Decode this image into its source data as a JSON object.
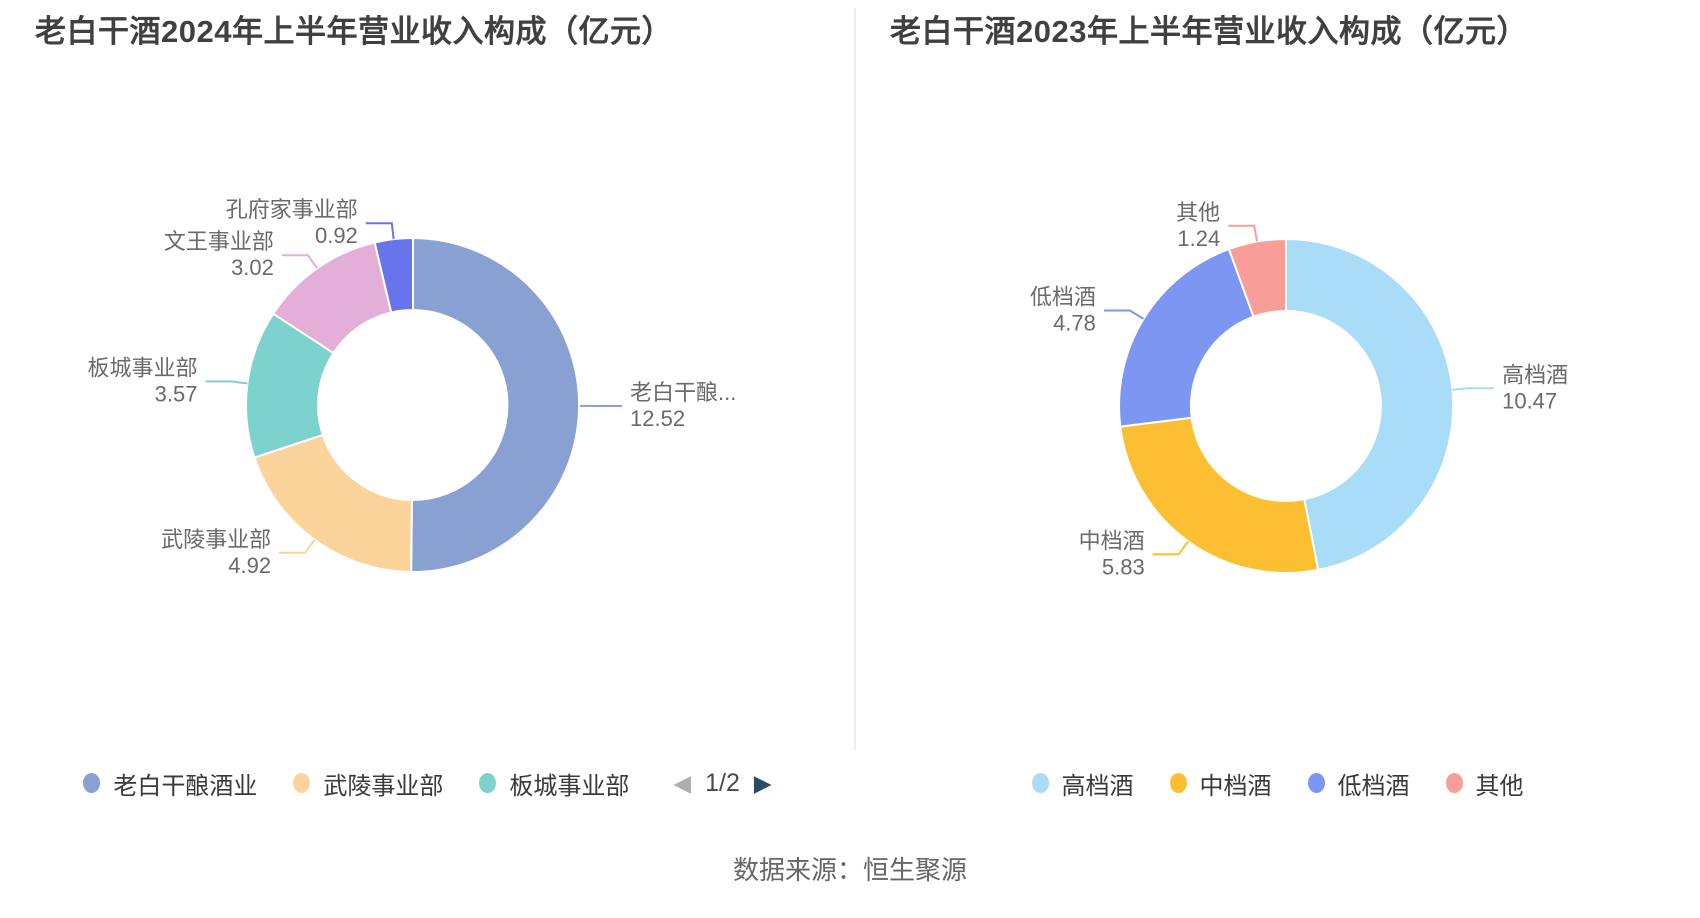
{
  "source": "数据来源：恒生聚源",
  "chart_data": [
    {
      "type": "pie",
      "title": "老白干酒2024年上半年营业收入构成（亿元）",
      "unit": "亿元",
      "donut": true,
      "items": [
        {
          "name": "老白干酿酒业",
          "display_name": "老白干酿...",
          "value": 12.52,
          "value_label": "12.52",
          "color": "#88a1d2"
        },
        {
          "name": "武陵事业部",
          "value": 4.92,
          "value_label": "4.92",
          "color": "#fad49a"
        },
        {
          "name": "板城事业部",
          "value": 3.57,
          "value_label": "3.57",
          "color": "#7ed2cd"
        },
        {
          "name": "文王事业部",
          "value": 3.02,
          "value_label": "3.02",
          "color": "#e3afd8"
        },
        {
          "name": "孔府家事业部",
          "value": 0.92,
          "value_label": "0.92",
          "color": "#6874ea"
        }
      ],
      "legend": [
        "老白干酿酒业",
        "武陵事业部",
        "板城事业部"
      ],
      "legend_pager": {
        "page_label": "1/2",
        "prev_icon": "◀",
        "next_icon": "▶"
      }
    },
    {
      "type": "pie",
      "title": "老白干酒2023年上半年营业收入构成（亿元）",
      "unit": "亿元",
      "donut": true,
      "items": [
        {
          "name": "高档酒",
          "value": 10.47,
          "value_label": "10.47",
          "color": "#a9dcf6"
        },
        {
          "name": "中档酒",
          "value": 5.83,
          "value_label": "5.83",
          "color": "#fcbe32"
        },
        {
          "name": "低档酒",
          "value": 4.78,
          "value_label": "4.78",
          "color": "#7d96f2"
        },
        {
          "name": "其他",
          "value": 1.24,
          "value_label": "1.24",
          "color": "#f89d98"
        }
      ],
      "legend": [
        "高档酒",
        "中档酒",
        "低档酒",
        "其他"
      ]
    }
  ]
}
